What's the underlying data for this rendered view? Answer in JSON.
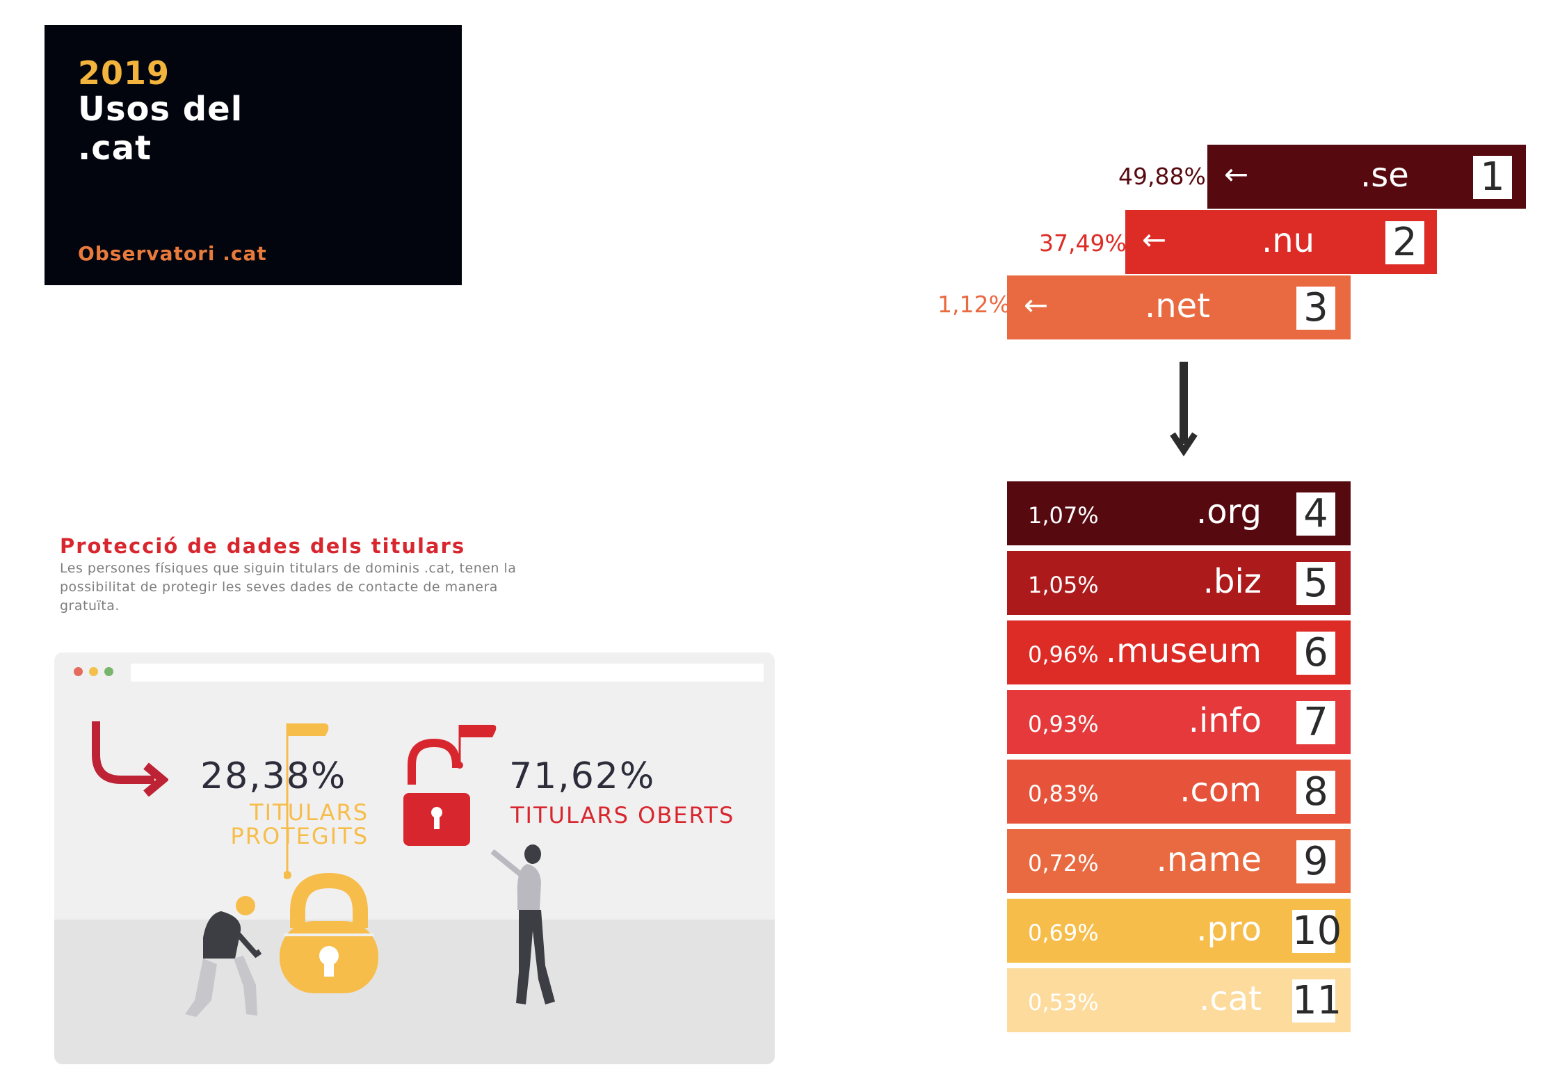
{
  "header": {
    "year": "2019",
    "title_line1": "Usos del",
    "title_line2": ".cat",
    "subtitle": "Observatori .cat"
  },
  "protection": {
    "title": "Protecció de dades dels titulars",
    "description": "Les persones físiques que siguin titulars de dominis .cat, tenen la possibilitat de protegir les seves dades de contacte de manera gratuïta.",
    "protected": {
      "value": "28,38%",
      "label_line1": "TITULARS",
      "label_line2": "PROTEGITS"
    },
    "open": {
      "value": "71,62%",
      "label": "TITULARS OBERTS"
    }
  },
  "top_domains": [
    {
      "pct": "49,88%",
      "label": ".se",
      "rank": "1",
      "color": "#560a10",
      "pct_color": "#560a10"
    },
    {
      "pct": "37,49%",
      "label": ".nu",
      "rank": "2",
      "color": "#dd2b26",
      "pct_color": "#dd2b26"
    },
    {
      "pct": "1,12%",
      "label": ".net",
      "rank": "3",
      "color": "#e96a40",
      "pct_color": "#e96a40"
    }
  ],
  "other_domains": [
    {
      "pct": "1,07%",
      "label": ".org",
      "rank": "4",
      "color": "#560a10"
    },
    {
      "pct": "1,05%",
      "label": ".biz",
      "rank": "5",
      "color": "#ad1a1c"
    },
    {
      "pct": "0,96%",
      "label": ".museum",
      "rank": "6",
      "color": "#dd2b26"
    },
    {
      "pct": "0,93%",
      "label": ".info",
      "rank": "7",
      "color": "#e5393b"
    },
    {
      "pct": "0,83%",
      "label": ".com",
      "rank": "8",
      "color": "#e6533a"
    },
    {
      "pct": "0,72%",
      "label": ".name",
      "rank": "9",
      "color": "#e96a40"
    },
    {
      "pct": "0,69%",
      "label": ".pro",
      "rank": "10",
      "color": "#f6bd4b"
    },
    {
      "pct": "0,53%",
      "label": ".cat",
      "rank": "11",
      "color": "#fddb9c"
    }
  ],
  "colors": {
    "accent_yellow": "#f6bd4b",
    "accent_red": "#d8262e",
    "dark": "#03050e"
  }
}
